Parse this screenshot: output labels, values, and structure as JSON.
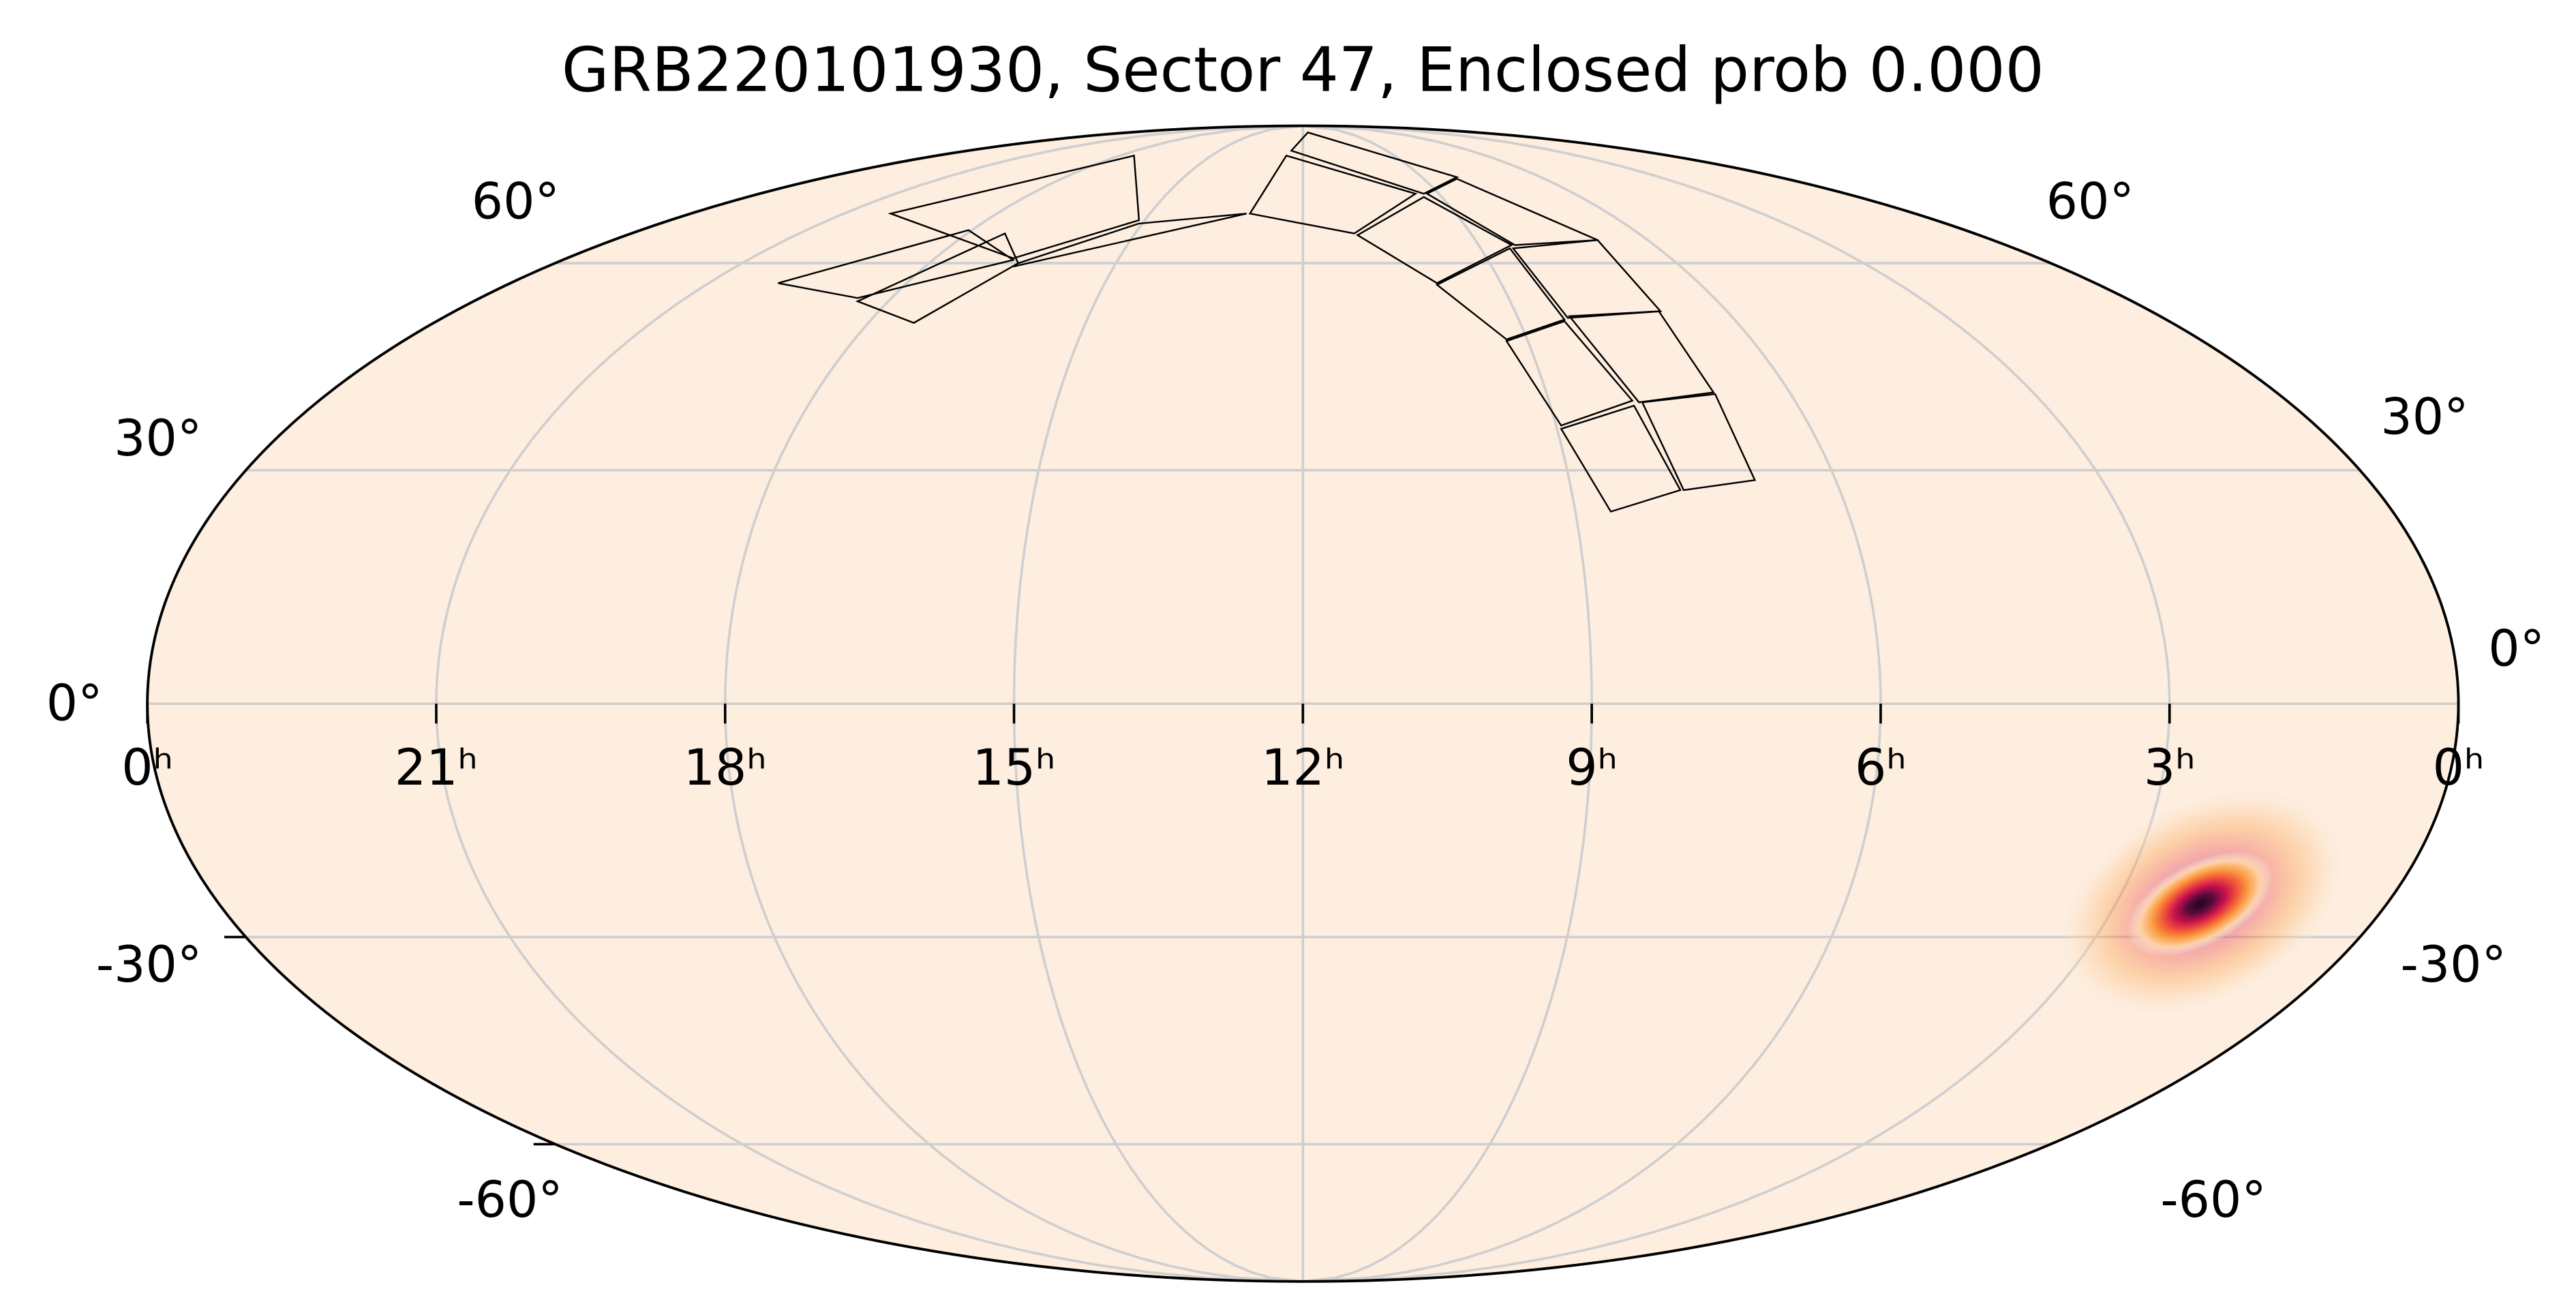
{
  "chart_data": {
    "type": "map",
    "projection": "mollweide",
    "title": "GRB220101930, Sector 47, Enclosed prob 0.000",
    "xlim": [
      24,
      0
    ],
    "xticks": [
      {
        "value": 24,
        "label": "0ʰ"
      },
      {
        "value": 21,
        "label": "21ʰ"
      },
      {
        "value": 18,
        "label": "18ʰ"
      },
      {
        "value": 15,
        "label": "15ʰ"
      },
      {
        "value": 12,
        "label": "12ʰ"
      },
      {
        "value": 9,
        "label": "9ʰ"
      },
      {
        "value": 6,
        "label": "6ʰ"
      },
      {
        "value": 3,
        "label": "3ʰ"
      },
      {
        "value": 0,
        "label": "0ʰ"
      }
    ],
    "ylim": [
      -90,
      90
    ],
    "yticks": [
      {
        "value": -60,
        "label": "-60°"
      },
      {
        "value": -30,
        "label": "-30°"
      },
      {
        "value": 0,
        "label": "0°"
      },
      {
        "value": 30,
        "label": "30°"
      },
      {
        "value": 60,
        "label": "60°"
      }
    ],
    "grid": true
  }
}
